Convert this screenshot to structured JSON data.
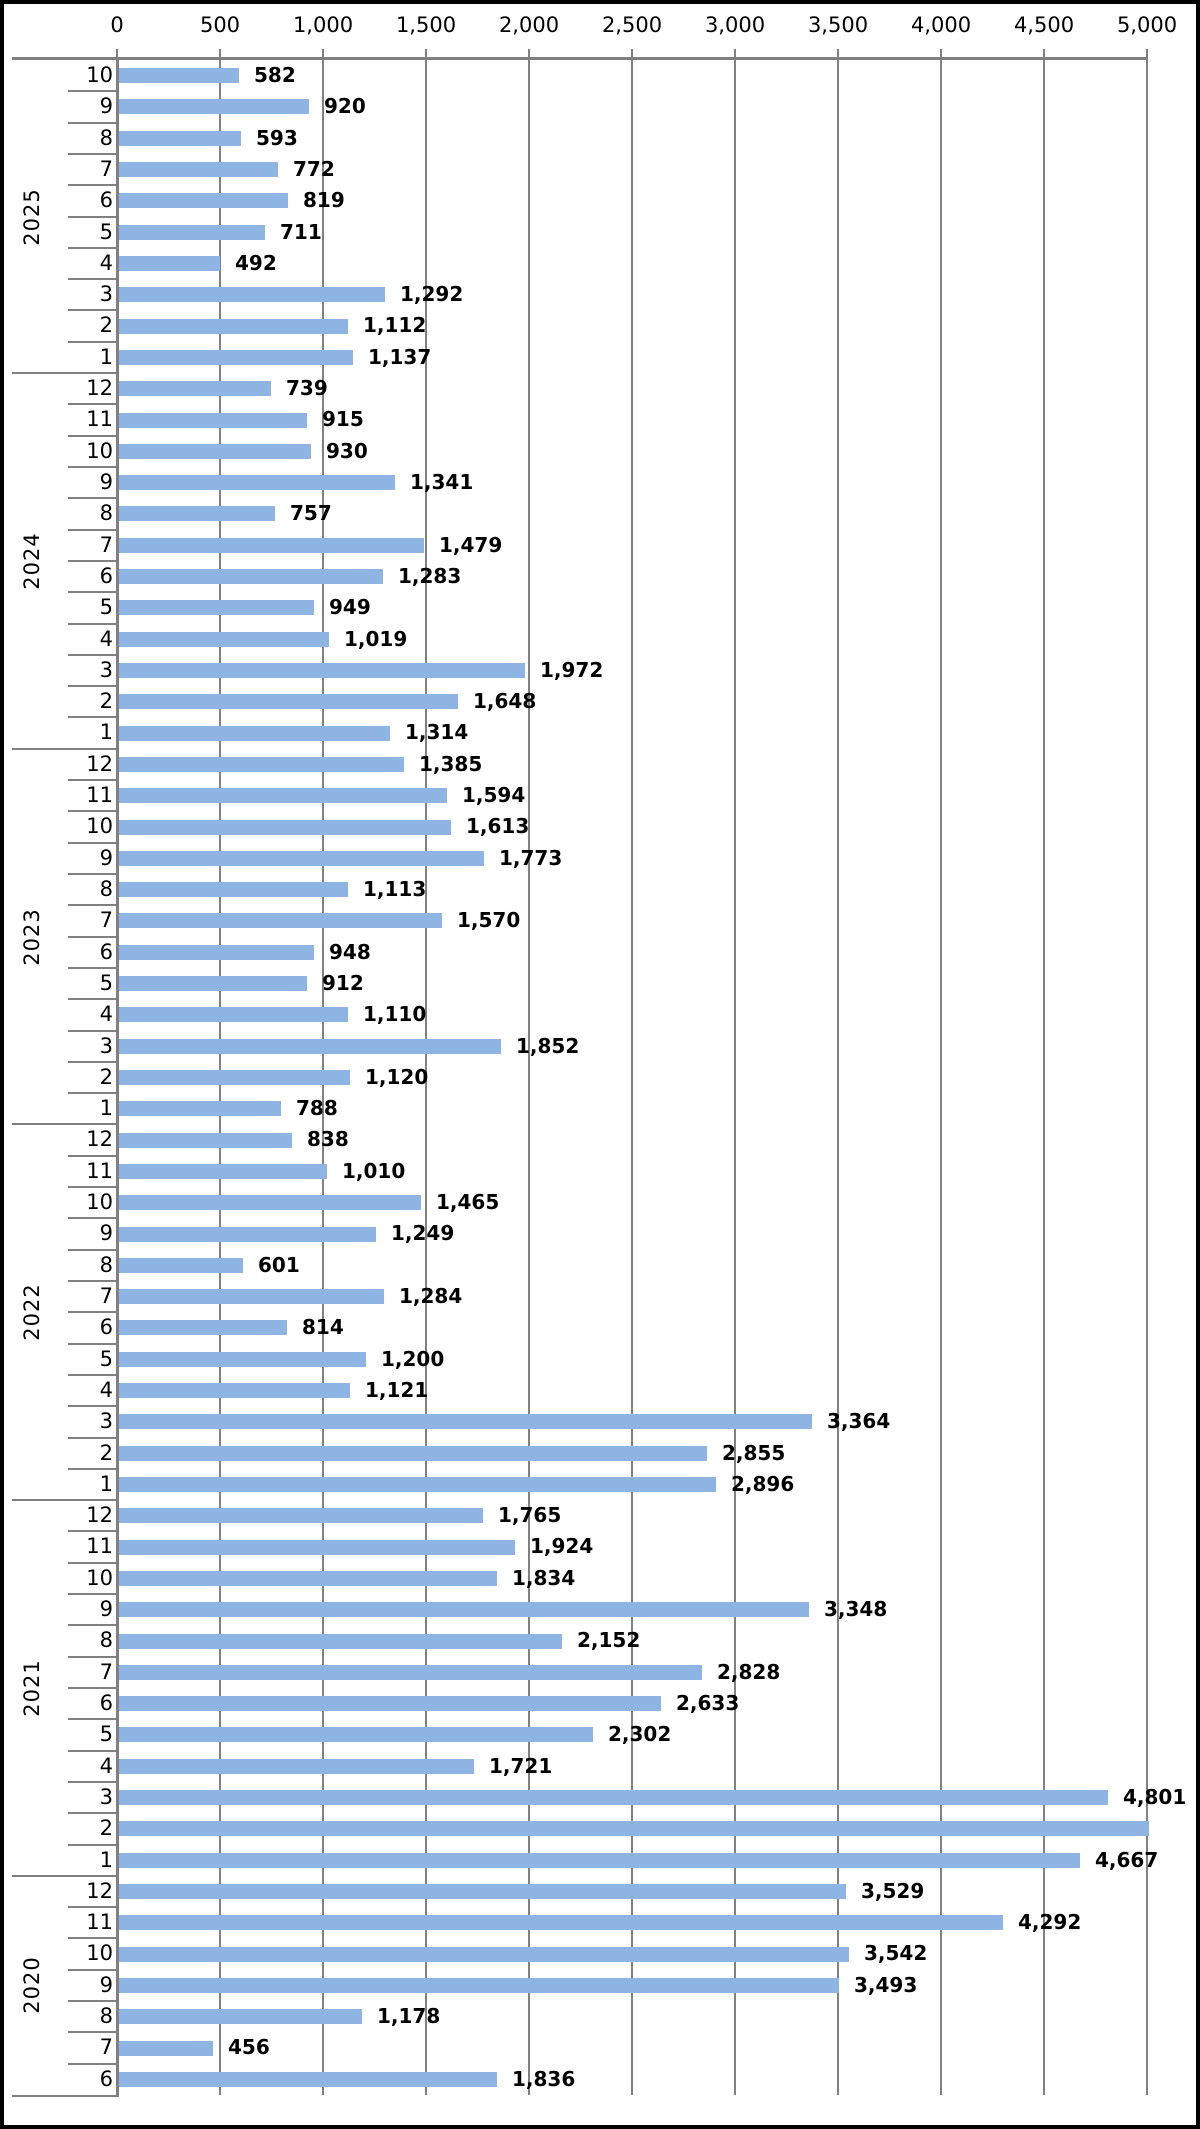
{
  "styles": {
    "bar_color": "#8DB4E2",
    "line_color": "#808080",
    "text_color": "#000000",
    "background": "#FFFFFF",
    "frame_border_color": "#000000"
  },
  "chart_data": {
    "type": "bar",
    "orientation": "horizontal",
    "title": "",
    "xlabel": "",
    "ylabel": "",
    "legend": null,
    "grid": true,
    "value_axis": {
      "position": "top",
      "min": 0,
      "max": 5000,
      "interval": 500,
      "tick_labels": [
        "0",
        "500",
        "1,000",
        "1,500",
        "2,000",
        "2,500",
        "3,000",
        "3,500",
        "4,000",
        "4,500",
        "5,000"
      ]
    },
    "category_axis": {
      "position": "left",
      "levels": [
        "month",
        "year"
      ]
    },
    "groups": [
      {
        "year": "2025",
        "months": [
          {
            "m": "10",
            "v": 582,
            "label": "582"
          },
          {
            "m": "9",
            "v": 920,
            "label": "920"
          },
          {
            "m": "8",
            "v": 593,
            "label": "593"
          },
          {
            "m": "7",
            "v": 772,
            "label": "772"
          },
          {
            "m": "6",
            "v": 819,
            "label": "819"
          },
          {
            "m": "5",
            "v": 711,
            "label": "711"
          },
          {
            "m": "4",
            "v": 492,
            "label": "492"
          },
          {
            "m": "3",
            "v": 1292,
            "label": "1,292"
          },
          {
            "m": "2",
            "v": 1112,
            "label": "1,112"
          },
          {
            "m": "1",
            "v": 1137,
            "label": "1,137"
          }
        ]
      },
      {
        "year": "2024",
        "months": [
          {
            "m": "12",
            "v": 739,
            "label": "739"
          },
          {
            "m": "11",
            "v": 915,
            "label": "915"
          },
          {
            "m": "10",
            "v": 930,
            "label": "930"
          },
          {
            "m": "9",
            "v": 1341,
            "label": "1,341"
          },
          {
            "m": "8",
            "v": 757,
            "label": "757"
          },
          {
            "m": "7",
            "v": 1479,
            "label": "1,479"
          },
          {
            "m": "6",
            "v": 1283,
            "label": "1,283"
          },
          {
            "m": "5",
            "v": 949,
            "label": "949"
          },
          {
            "m": "4",
            "v": 1019,
            "label": "1,019"
          },
          {
            "m": "3",
            "v": 1972,
            "label": "1,972"
          },
          {
            "m": "2",
            "v": 1648,
            "label": "1,648"
          },
          {
            "m": "1",
            "v": 1314,
            "label": "1,314"
          }
        ]
      },
      {
        "year": "2023",
        "months": [
          {
            "m": "12",
            "v": 1385,
            "label": "1,385"
          },
          {
            "m": "11",
            "v": 1594,
            "label": "1,594"
          },
          {
            "m": "10",
            "v": 1613,
            "label": "1,613"
          },
          {
            "m": "9",
            "v": 1773,
            "label": "1,773"
          },
          {
            "m": "8",
            "v": 1113,
            "label": "1,113"
          },
          {
            "m": "7",
            "v": 1570,
            "label": "1,570"
          },
          {
            "m": "6",
            "v": 948,
            "label": "948"
          },
          {
            "m": "5",
            "v": 912,
            "label": "912"
          },
          {
            "m": "4",
            "v": 1110,
            "label": "1,110"
          },
          {
            "m": "3",
            "v": 1852,
            "label": "1,852"
          },
          {
            "m": "2",
            "v": 1120,
            "label": "1,120"
          },
          {
            "m": "1",
            "v": 788,
            "label": "788"
          }
        ]
      },
      {
        "year": "2022",
        "months": [
          {
            "m": "12",
            "v": 838,
            "label": "838"
          },
          {
            "m": "11",
            "v": 1010,
            "label": "1,010"
          },
          {
            "m": "10",
            "v": 1465,
            "label": "1,465"
          },
          {
            "m": "9",
            "v": 1249,
            "label": "1,249"
          },
          {
            "m": "8",
            "v": 601,
            "label": "601"
          },
          {
            "m": "7",
            "v": 1284,
            "label": "1,284"
          },
          {
            "m": "6",
            "v": 814,
            "label": "814"
          },
          {
            "m": "5",
            "v": 1200,
            "label": "1,200"
          },
          {
            "m": "4",
            "v": 1121,
            "label": "1,121"
          },
          {
            "m": "3",
            "v": 3364,
            "label": "3,364"
          },
          {
            "m": "2",
            "v": 2855,
            "label": "2,855"
          },
          {
            "m": "1",
            "v": 2896,
            "label": "2,896"
          }
        ]
      },
      {
        "year": "2021",
        "months": [
          {
            "m": "12",
            "v": 1765,
            "label": "1,765"
          },
          {
            "m": "11",
            "v": 1924,
            "label": "1,924"
          },
          {
            "m": "10",
            "v": 1834,
            "label": "1,834"
          },
          {
            "m": "9",
            "v": 3348,
            "label": "3,348"
          },
          {
            "m": "8",
            "v": 2152,
            "label": "2,152"
          },
          {
            "m": "7",
            "v": 2828,
            "label": "2,828"
          },
          {
            "m": "6",
            "v": 2633,
            "label": "2,633"
          },
          {
            "m": "5",
            "v": 2302,
            "label": "2,302"
          },
          {
            "m": "4",
            "v": 1721,
            "label": "1,721"
          },
          {
            "m": "3",
            "v": 4801,
            "label": "4,801"
          },
          {
            "m": "2",
            "v": 5000,
            "label": ""
          },
          {
            "m": "1",
            "v": 4667,
            "label": "4,667"
          }
        ]
      },
      {
        "year": "2020",
        "months": [
          {
            "m": "12",
            "v": 3529,
            "label": "3,529"
          },
          {
            "m": "11",
            "v": 4292,
            "label": "4,292"
          },
          {
            "m": "10",
            "v": 3542,
            "label": "3,542"
          },
          {
            "m": "9",
            "v": 3493,
            "label": "3,493"
          },
          {
            "m": "8",
            "v": 1178,
            "label": "1,178"
          },
          {
            "m": "7",
            "v": 456,
            "label": "456"
          },
          {
            "m": "6",
            "v": 1836,
            "label": "1,836"
          }
        ]
      }
    ]
  }
}
